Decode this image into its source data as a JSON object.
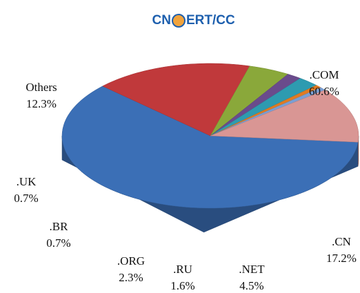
{
  "logo": {
    "left": "CN",
    "right": "ERT/CC"
  },
  "chart_data": {
    "type": "pie",
    "categories": [
      ".COM",
      ".CN",
      ".NET",
      ".RU",
      ".ORG",
      ".BR",
      ".UK",
      "Others"
    ],
    "values": [
      60.6,
      17.2,
      4.5,
      1.6,
      2.3,
      0.7,
      0.7,
      12.3
    ],
    "value_labels": [
      "60.6%",
      "17.2%",
      "4.5%",
      "1.6%",
      "2.3%",
      "0.7%",
      "0.7%",
      "12.3%"
    ],
    "colors": [
      "#3b6fb6",
      "#c0393b",
      "#8aa83a",
      "#6a4b8c",
      "#2e9bb0",
      "#e07b22",
      "#7a9fd4",
      "#d99694"
    ]
  }
}
